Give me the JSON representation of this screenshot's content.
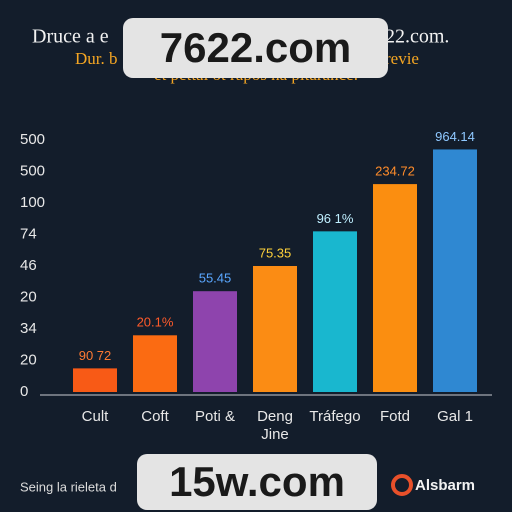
{
  "chart_data": {
    "type": "bar",
    "title_lines": [
      "Druce a e",
      "22.com.",
      "Dur. b",
      "revie",
      "et pettal ot rapos na pltarance."
    ],
    "categories": [
      "Cult",
      "Coft",
      "Poti &",
      "Deng Jine",
      "Tráfego",
      "Fotd",
      "Gal 1"
    ],
    "values": [
      0.75,
      1.8,
      3.2,
      4.0,
      5.1,
      6.6,
      7.7
    ],
    "value_labels": [
      "90 72",
      "20.1%",
      "55.45",
      "75.35",
      "96 1%",
      "234.72",
      "964.14"
    ],
    "colors": [
      "#f85a16",
      "#fb6b12",
      "#8e44ad",
      "#fb8c14",
      "#19b7cf",
      "#fb8e10",
      "#2f88d2"
    ],
    "label_colors": [
      "#ff7a33",
      "#ff5a2a",
      "#5aa7ff",
      "#ffd23a",
      "#bfefff",
      "#ff8c2a",
      "#8fc8ff"
    ],
    "ylim": [
      0,
      8
    ],
    "yticks": [
      {
        "value": 0,
        "label": "0"
      },
      {
        "value": 1,
        "label": "20"
      },
      {
        "value": 2,
        "label": "34"
      },
      {
        "value": 3,
        "label": "20"
      },
      {
        "value": 4,
        "label": "46"
      },
      {
        "value": 5,
        "label": "74"
      },
      {
        "value": 6,
        "label": "100"
      },
      {
        "value": 7,
        "label": "500"
      },
      {
        "value": 8,
        "label": "500"
      }
    ],
    "footer": "Seing la rieleta d",
    "logo": "Alsbarm",
    "watermarks": [
      "7622.com",
      "15w.com"
    ]
  }
}
